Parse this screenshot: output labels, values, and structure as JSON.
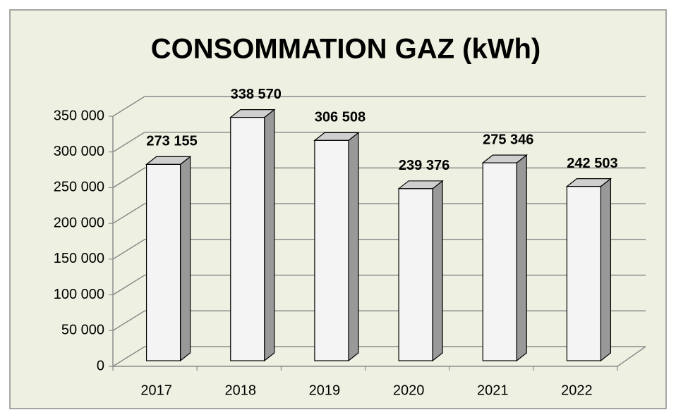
{
  "chart_data": {
    "type": "bar",
    "title": "CONSOMMATION GAZ (kWh)",
    "categories": [
      "2017",
      "2018",
      "2019",
      "2020",
      "2021",
      "2022"
    ],
    "values": [
      273155,
      338570,
      306508,
      239376,
      275346,
      242503
    ],
    "value_labels": [
      "273 155",
      "338 570",
      "306 508",
      "239 376",
      "275 346",
      "242 503"
    ],
    "color": "#f4f4f4",
    "ylim": [
      0,
      350000
    ],
    "yticks": [
      0,
      {
        "value": 50000,
        "label": "50 000"
      },
      {
        "value": 100000,
        "label": "100 000"
      },
      {
        "value": 150000,
        "label": "150 000"
      },
      {
        "value": 200000,
        "label": "200 000"
      },
      {
        "value": 250000,
        "label": "250 000"
      },
      {
        "value": 300000,
        "label": "300 000"
      },
      {
        "value": 350000,
        "label": "350 000"
      }
    ],
    "grid": true
  }
}
